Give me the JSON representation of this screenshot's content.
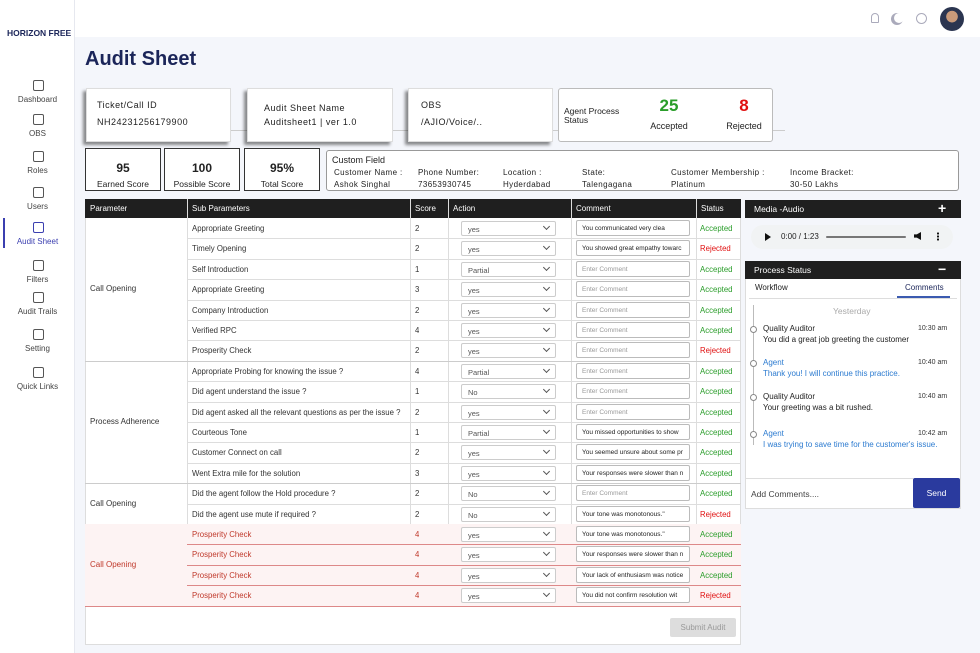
{
  "brand": "HORIZON FREE",
  "nav": [
    "Dashboard",
    "OBS",
    "Roles",
    "Users",
    "Audit Sheet",
    "Filters",
    "Audit Trails",
    "Setting",
    "Quick Links"
  ],
  "active_nav": 4,
  "page_title": "Audit Sheet",
  "cards": {
    "ticket": {
      "label": "Ticket/Call ID",
      "value": "NH24231256179900"
    },
    "sheet": {
      "label": "Audit Sheet Name",
      "value": "Auditsheet1 | ver 1.0"
    },
    "obs": {
      "label": "OBS",
      "value": "/AJIO/Voice/.."
    },
    "status": {
      "label": "Agent Process Status",
      "accepted": "25",
      "accepted_label": "Accepted",
      "rejected": "8",
      "rejected_label": "Rejected"
    }
  },
  "scores": [
    {
      "value": "95",
      "label": "Earned Score"
    },
    {
      "value": "100",
      "label": "Possible Score"
    },
    {
      "value": "95%",
      "label": "Total Score"
    }
  ],
  "custom_field": {
    "title": "Custom Field",
    "fields": [
      {
        "label": "Customer Name :",
        "value": "Ashok Singhal"
      },
      {
        "label": "Phone Number:",
        "value": "73653930745"
      },
      {
        "label": "Location :",
        "value": "Hyderdabad"
      },
      {
        "label": "State:",
        "value": "Talengagana"
      },
      {
        "label": "Customer Membership :",
        "value": "Platinum"
      },
      {
        "label": "Income Bracket:",
        "value": "30-50 Lakhs"
      }
    ]
  },
  "table": {
    "headers": [
      "Parameter",
      "Sub Parameters",
      "Score",
      "Action",
      "Comment",
      "Status"
    ],
    "groups": [
      {
        "parameter": "Call Opening",
        "highlight": false,
        "rows": [
          [
            "Appropriate Greeting",
            "2",
            "yes",
            "You communicated very clea",
            "Accepted"
          ],
          [
            "Timely Opening",
            "2",
            "yes",
            "You showed great empathy towarc",
            "Rejected"
          ],
          [
            "Self Introduction",
            "1",
            "Partial",
            "Enter Comment",
            "Accepted"
          ],
          [
            "Appropriate Greeting",
            "3",
            "yes",
            "Enter Comment",
            "Accepted"
          ],
          [
            "Company Introduction",
            "2",
            "yes",
            "Enter Comment",
            "Accepted"
          ],
          [
            "Verified RPC",
            "4",
            "yes",
            "Enter Comment",
            "Accepted"
          ],
          [
            "Prosperity Check",
            "2",
            "yes",
            "Enter Comment",
            "Rejected"
          ]
        ]
      },
      {
        "parameter": "Process Adherence",
        "highlight": false,
        "rows": [
          [
            "Appropriate Probing for knowing the issue ?",
            "4",
            "Partial",
            "Enter Comment",
            "Accepted"
          ],
          [
            "Did agent understand the issue ?",
            "1",
            "No",
            "Enter Comment",
            "Accepted"
          ],
          [
            "Did agent asked all the relevant questions as per the issue ?",
            "2",
            "yes",
            "Enter Comment",
            "Accepted"
          ],
          [
            "Courteous Tone",
            "1",
            "Partial",
            "You missed opportunities to show",
            "Accepted"
          ],
          [
            "Customer Connect on call",
            "2",
            "yes",
            "You seemed unsure about some pr",
            "Accepted"
          ],
          [
            "Went Extra mile for the solution",
            "3",
            "yes",
            "Your responses were slower than n",
            "Accepted"
          ]
        ]
      },
      {
        "parameter": "Call Opening",
        "highlight": false,
        "rows": [
          [
            "Did the agent follow the Hold procedure ?",
            "2",
            "No",
            "Enter Comment",
            "Accepted"
          ],
          [
            "Did the agent use mute if required ?",
            "2",
            "No",
            "Your tone was monotonous.\"",
            "Rejected"
          ]
        ]
      },
      {
        "parameter": "Call Opening",
        "highlight": true,
        "rows": [
          [
            "Prosperity Check",
            "4",
            "yes",
            "Your tone was monotonous.\"",
            "Accepted"
          ],
          [
            "Prosperity Check",
            "4",
            "yes",
            "Your responses were slower than n",
            "Accepted"
          ],
          [
            "Prosperity Check",
            "4",
            "yes",
            "Your lack of enthusiasm was notice",
            "Accepted"
          ],
          [
            "Prosperity Check",
            "4",
            "yes",
            "You did not confirm resolution wit",
            "Rejected"
          ]
        ]
      }
    ]
  },
  "submit": "Submit Audit",
  "media": {
    "title": "Media -Audio",
    "add": "+",
    "time": "0:00 / 1:23"
  },
  "process": {
    "title": "Process Status",
    "collapse": "−",
    "tabs": [
      "Workflow",
      "Comments"
    ],
    "active_tab": 1,
    "day": "Yesterday",
    "comments": [
      {
        "author": "Quality Auditor",
        "time": "10:30 am",
        "text": "You did a great job greeting the customer",
        "agent": false
      },
      {
        "author": "Agent",
        "time": "10:40 am",
        "text": "Thank you! I will continue this practice.",
        "agent": true
      },
      {
        "author": "Quality Auditor",
        "time": "10:40 am",
        "text": "Your greeting was a bit rushed.",
        "agent": false
      },
      {
        "author": "Agent",
        "time": "10:42 am",
        "text": "I was trying to save time for the customer's issue.",
        "agent": true
      }
    ],
    "input": "Add Comments....",
    "send": "Send"
  }
}
